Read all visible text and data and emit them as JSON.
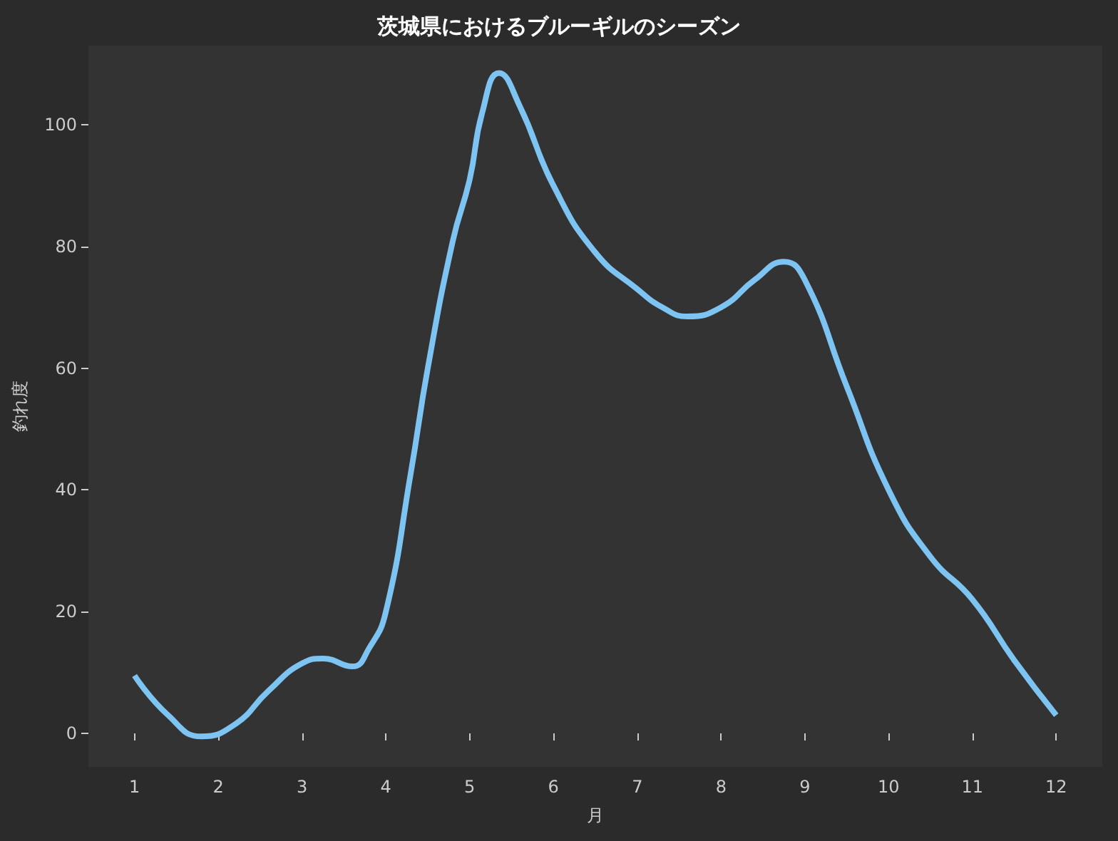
{
  "chart_data": {
    "type": "line",
    "title": "茨城県におけるブルーギルのシーズン",
    "xlabel": "月",
    "ylabel": "釣れ度",
    "xlim": [
      0.45,
      12.55
    ],
    "xticks": [
      1,
      2,
      3,
      4,
      5,
      6,
      7,
      8,
      9,
      10,
      11,
      12
    ],
    "ylim": [
      -5.5,
      113
    ],
    "yticks": [
      0,
      20,
      40,
      60,
      80,
      100
    ],
    "series": [
      {
        "color": "#7dc4f2",
        "x": [
          1,
          1.4,
          1.8,
          2.2,
          2.6,
          3,
          3.25,
          3.6,
          3.8,
          4,
          4.3,
          4.5,
          4.8,
          5,
          5.15,
          5.35,
          5.6,
          6,
          6.5,
          7,
          7.3,
          7.6,
          8,
          8.4,
          8.75,
          9,
          9.5,
          10,
          10.5,
          11,
          11.5,
          12
        ],
        "values": [
          9.5,
          3,
          -0.5,
          1.5,
          7,
          11.5,
          12.3,
          11,
          14,
          20,
          43,
          60,
          81,
          91,
          102,
          108.5,
          103,
          90,
          79,
          73,
          70,
          68.5,
          70,
          74.5,
          77.5,
          74.5,
          57,
          40,
          29,
          22,
          12,
          3
        ]
      }
    ]
  }
}
